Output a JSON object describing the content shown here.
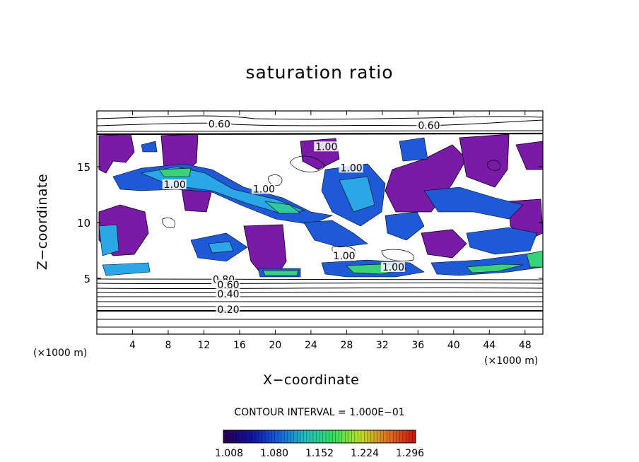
{
  "chart_data": {
    "type": "contour",
    "title": "saturation ratio",
    "xlabel": "X−coordinate",
    "ylabel": "Z−coordinate",
    "x_unit_left": "(×1000 m)",
    "x_unit_right": "(×1000 m)",
    "xlim": [
      0,
      50
    ],
    "ylim": [
      0,
      20
    ],
    "x_ticks": [
      4,
      8,
      12,
      16,
      20,
      24,
      28,
      32,
      36,
      40,
      44,
      48
    ],
    "x_tick_labels": [
      "4",
      "8",
      "12",
      "16",
      "20",
      "24",
      "28",
      "32",
      "36",
      "40",
      "44",
      "48"
    ],
    "y_ticks": [
      5,
      10,
      15
    ],
    "y_tick_labels": [
      "5",
      "10",
      "15"
    ],
    "contour_interval_text": "CONTOUR INTERVAL = 1.000E−01",
    "colorbar": {
      "tick_labels": [
        "1.008",
        "1.080",
        "1.152",
        "1.224",
        "1.296"
      ],
      "colors": [
        "#2a0050",
        "#1010a0",
        "#1560e0",
        "#20c0c0",
        "#30e060",
        "#c0e020",
        "#e07020",
        "#d01010"
      ]
    },
    "contour_labels": [
      {
        "text": "0.60",
        "x": 12.5,
        "y": 18.5
      },
      {
        "text": "0.60",
        "x": 36.0,
        "y": 18.4
      },
      {
        "text": "1.00",
        "x": 24.5,
        "y": 16.5
      },
      {
        "text": "1.00",
        "x": 27.3,
        "y": 14.6
      },
      {
        "text": "1.00",
        "x": 7.5,
        "y": 13.1
      },
      {
        "text": "1.00",
        "x": 17.5,
        "y": 12.7
      },
      {
        "text": "1.00",
        "x": 26.5,
        "y": 6.7
      },
      {
        "text": "1.00",
        "x": 32.0,
        "y": 5.7
      },
      {
        "text": "0.80",
        "x": 13.0,
        "y": 4.6
      },
      {
        "text": "0.60",
        "x": 13.5,
        "y": 4.1
      },
      {
        "text": "0.40",
        "x": 13.5,
        "y": 3.3
      },
      {
        "text": "0.20",
        "x": 13.5,
        "y": 1.9
      }
    ],
    "legend_position": "bottom"
  }
}
